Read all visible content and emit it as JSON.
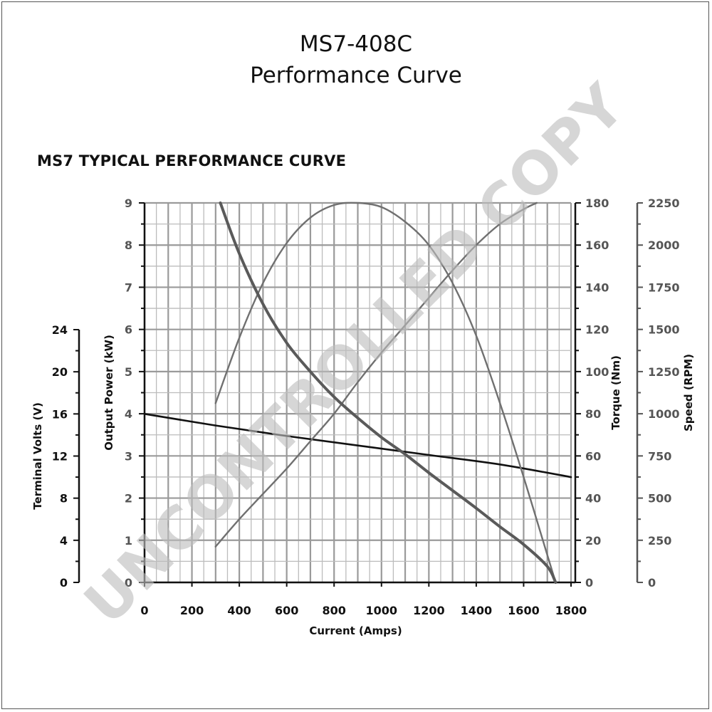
{
  "header": {
    "title": "MS7-408C",
    "subtitle": "Performance Curve"
  },
  "watermark": "UNCONTROLLED COPY",
  "chart_data": {
    "type": "line",
    "title": "MS7 TYPICAL PERFORMANCE CURVE",
    "xlabel": "Current (Amps)",
    "xlim": [
      0,
      1800
    ],
    "x_ticks": [
      0,
      200,
      400,
      600,
      800,
      1000,
      1200,
      1400,
      1600,
      1800
    ],
    "grid": true,
    "axes": [
      {
        "id": "volts",
        "label": "Terminal Volts (V)",
        "side": "left-outer",
        "range": [
          0,
          24
        ],
        "ticks": [
          0,
          4,
          8,
          12,
          16,
          20,
          24
        ]
      },
      {
        "id": "power",
        "label": "Output Power (kW)",
        "side": "left-inner",
        "range": [
          0,
          9
        ],
        "ticks": [
          0,
          1,
          2,
          3,
          4,
          5,
          6,
          7,
          8,
          9
        ]
      },
      {
        "id": "torque",
        "label": "Torque (Nm)",
        "side": "right-inner",
        "range": [
          0,
          180
        ],
        "ticks": [
          0,
          20,
          40,
          60,
          80,
          100,
          120,
          140,
          160,
          180
        ]
      },
      {
        "id": "speed",
        "label": "Speed (RPM)",
        "side": "right-outer",
        "range": [
          0,
          2250
        ],
        "ticks": [
          0,
          250,
          500,
          750,
          1000,
          1250,
          1500,
          1750,
          2000,
          2250
        ]
      }
    ],
    "series": [
      {
        "axis": "volts",
        "color": "#111111",
        "width": 2.6,
        "x": [
          0,
          300,
          600,
          900,
          1200,
          1500,
          1800
        ],
        "y": [
          16.0,
          14.9,
          13.9,
          13.0,
          12.1,
          11.2,
          10.0
        ]
      },
      {
        "axis": "power",
        "color": "#707070",
        "width": 2.4,
        "x": [
          300,
          400,
          500,
          600,
          700,
          800,
          900,
          1000,
          1100,
          1200,
          1300,
          1400,
          1500,
          1600,
          1700,
          1735
        ],
        "y": [
          4.25,
          5.8,
          7.1,
          8.05,
          8.65,
          8.95,
          9.0,
          8.9,
          8.55,
          8.0,
          7.1,
          5.85,
          4.25,
          2.5,
          0.65,
          0.0
        ]
      },
      {
        "axis": "torque",
        "color": "#707070",
        "width": 2.4,
        "x": [
          300,
          400,
          500,
          600,
          700,
          800,
          900,
          1000,
          1100,
          1200,
          1300,
          1400,
          1500,
          1600,
          1655
        ],
        "y": [
          17,
          30,
          42,
          54,
          67,
          80,
          95,
          109,
          122,
          135,
          148,
          160,
          170,
          177,
          180
        ]
      },
      {
        "axis": "speed",
        "color": "#5a5a5a",
        "width": 4.0,
        "x": [
          320,
          400,
          500,
          600,
          700,
          800,
          900,
          1000,
          1100,
          1200,
          1300,
          1400,
          1500,
          1600,
          1700,
          1735
        ],
        "y": [
          2250,
          1950,
          1650,
          1420,
          1250,
          1100,
          975,
          860,
          760,
          650,
          545,
          440,
          330,
          225,
          95,
          0
        ]
      }
    ]
  }
}
